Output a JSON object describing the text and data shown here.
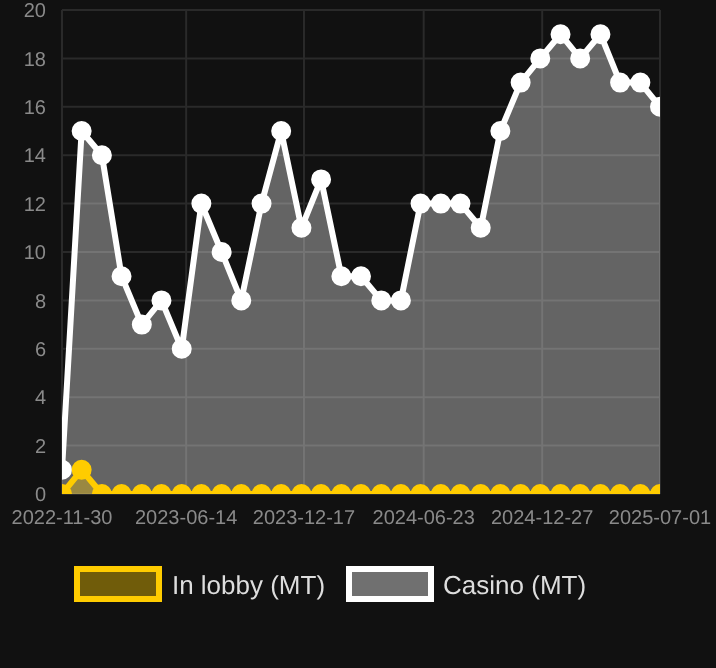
{
  "chart_data": {
    "type": "area",
    "x": [
      "2022-11-30",
      "2022-12-31",
      "2023-02-01",
      "2023-03-04",
      "2023-04-05",
      "2023-05-06",
      "2023-06-07",
      "2023-07-08",
      "2023-08-09",
      "2023-09-09",
      "2023-10-11",
      "2023-11-11",
      "2023-12-13",
      "2024-01-13",
      "2024-02-14",
      "2024-03-16",
      "2024-04-17",
      "2024-05-18",
      "2024-06-18",
      "2024-07-20",
      "2024-08-20",
      "2024-09-21",
      "2024-10-22",
      "2024-11-23",
      "2024-12-24",
      "2025-01-25",
      "2025-02-25",
      "2025-03-29",
      "2025-04-29",
      "2025-05-31",
      "2025-07-01"
    ],
    "series": [
      {
        "name": "In lobby (MT)",
        "color": "#ffcc00",
        "values": [
          0,
          1,
          0,
          0,
          0,
          0,
          0,
          0,
          0,
          0,
          0,
          0,
          0,
          0,
          0,
          0,
          0,
          0,
          0,
          0,
          0,
          0,
          0,
          0,
          0,
          0,
          0,
          0,
          0,
          0,
          0
        ]
      },
      {
        "name": "Casino (MT)",
        "color": "#ffffff",
        "values": [
          1,
          15,
          14,
          9,
          7,
          8,
          6,
          12,
          10,
          8,
          12,
          15,
          11,
          13,
          9,
          9,
          8,
          8,
          12,
          12,
          12,
          11,
          15,
          17,
          18,
          19,
          18,
          19,
          17,
          17,
          16
        ]
      }
    ],
    "xlim": [
      "2022-11-30",
      "2025-07-01"
    ],
    "xticks": [
      "2022-11-30",
      "2023-06-14",
      "2023-12-17",
      "2024-06-23",
      "2024-12-27",
      "2025-07-01"
    ],
    "ylim": [
      0,
      20
    ],
    "yticks": [
      0,
      2,
      4,
      6,
      8,
      10,
      12,
      14,
      16,
      18,
      20
    ],
    "grid": true,
    "legend": "bottom",
    "marker": "circle",
    "line_style": "solid"
  }
}
